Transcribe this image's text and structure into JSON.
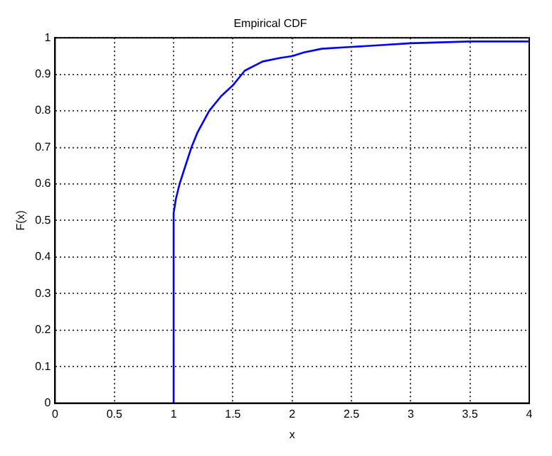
{
  "chart_data": {
    "type": "line",
    "title": "Empirical CDF",
    "xlabel": "x",
    "ylabel": "F(x)",
    "x": [
      1,
      1,
      1.02,
      1.05,
      1.1,
      1.15,
      1.2,
      1.3,
      1.4,
      1.5,
      1.6,
      1.75,
      1.9,
      2,
      2.1,
      2.25,
      2.5,
      2.75,
      3,
      3.5,
      4
    ],
    "series": [
      {
        "color": "#0000ff",
        "values": [
          0,
          0.52,
          0.56,
          0.6,
          0.65,
          0.7,
          0.74,
          0.8,
          0.84,
          0.87,
          0.91,
          0.935,
          0.945,
          0.95,
          0.96,
          0.97,
          0.975,
          0.98,
          0.985,
          0.99,
          0.99
        ]
      }
    ],
    "xlim": [
      0,
      4
    ],
    "xticks": [
      0,
      0.5,
      1,
      1.5,
      2,
      2.5,
      3,
      3.5,
      4
    ],
    "ylim": [
      0,
      1
    ],
    "yticks": [
      0,
      0.1,
      0.2,
      0.3,
      0.4,
      0.5,
      0.6,
      0.7,
      0.8,
      0.9,
      1
    ],
    "grid": true,
    "legend": false,
    "marker": "none",
    "line_style": "solid"
  }
}
